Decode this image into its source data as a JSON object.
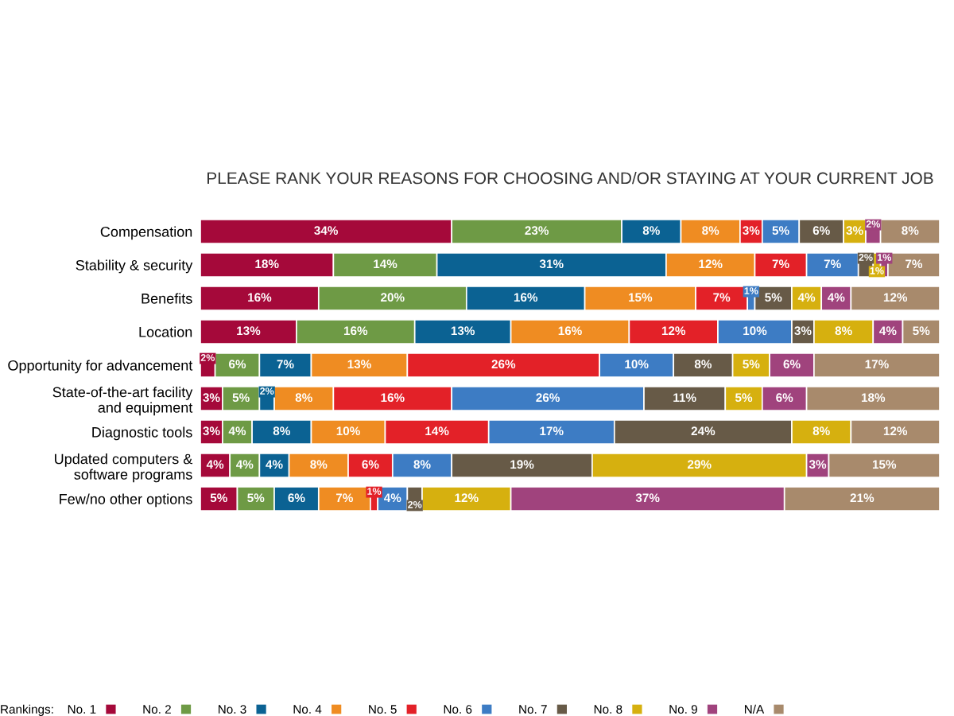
{
  "chart_data": {
    "type": "bar",
    "orientation": "horizontal",
    "stacked": true,
    "title": "PLEASE RANK YOUR REASONS FOR CHOOSING AND/OR STAYING AT YOUR CURRENT JOB",
    "categories": [
      "Compensation",
      "Stability & security",
      "Benefits",
      "Location",
      "Opportunity for advancement",
      "State-of-the-art facility\nand equipment",
      "Diagnostic tools",
      "Updated computers &\nsoftware programs",
      "Few/no other options"
    ],
    "legend_title": "Rankings:",
    "legend": "bottom",
    "tick_labels": "y",
    "series": [
      {
        "name": "No. 1",
        "color": "#a5093a",
        "values": [
          34,
          18,
          16,
          13,
          2,
          3,
          3,
          4,
          5
        ],
        "value_labels": [
          "34%",
          "18%",
          "16%",
          "13%",
          "2%",
          "3%",
          "3%",
          "4%",
          "5%"
        ]
      },
      {
        "name": "No. 2",
        "color": "#6e9a45",
        "values": [
          23,
          14,
          20,
          16,
          6,
          5,
          4,
          4,
          5
        ],
        "value_labels": [
          "23%",
          "14%",
          "20%",
          "16%",
          "6%",
          "5%",
          "4%",
          "4%",
          "5%"
        ]
      },
      {
        "name": "No. 3",
        "color": "#0b6293",
        "values": [
          8,
          31,
          16,
          13,
          7,
          2,
          8,
          4,
          6
        ],
        "value_labels": [
          "8%",
          "31%",
          "16%",
          "13%",
          "7%",
          "2%",
          "8%",
          "4%",
          "6%"
        ]
      },
      {
        "name": "No. 4",
        "color": "#ef8c22",
        "values": [
          8,
          12,
          15,
          16,
          13,
          8,
          10,
          8,
          7
        ],
        "value_labels": [
          "8%",
          "12%",
          "15%",
          "16%",
          "13%",
          "8%",
          "10%",
          "8%",
          "7%"
        ]
      },
      {
        "name": "No. 5",
        "color": "#e32128",
        "values": [
          3,
          7,
          7,
          12,
          26,
          16,
          14,
          6,
          1
        ],
        "value_labels": [
          "3%",
          "7%",
          "7%",
          "12%",
          "26%",
          "16%",
          "14%",
          "6%",
          "1%"
        ]
      },
      {
        "name": "No. 6",
        "color": "#3d7cc4",
        "values": [
          5,
          7,
          1,
          10,
          10,
          26,
          17,
          8,
          4
        ],
        "value_labels": [
          "5%",
          "7%",
          "1%",
          "10%",
          "10%",
          "26%",
          "17%",
          "8%",
          "4%"
        ]
      },
      {
        "name": "No. 7",
        "color": "#675a47",
        "values": [
          6,
          2,
          5,
          3,
          8,
          11,
          24,
          19,
          2
        ],
        "value_labels": [
          "6%",
          "2%",
          "5%",
          "3%",
          "8%",
          "11%",
          "24%",
          "19%",
          "2%"
        ]
      },
      {
        "name": "No. 8",
        "color": "#d6b00f",
        "values": [
          3,
          1,
          4,
          8,
          5,
          5,
          8,
          29,
          12
        ],
        "value_labels": [
          "3%",
          "1%",
          "4%",
          "8%",
          "5%",
          "5%",
          "8%",
          "29%",
          "12%"
        ]
      },
      {
        "name": "No. 9",
        "color": "#a0437d",
        "values": [
          2,
          1,
          4,
          4,
          6,
          6,
          0,
          3,
          37
        ],
        "value_labels": [
          "2%",
          "1%",
          "4%",
          "4%",
          "6%",
          "6%",
          null,
          "3%",
          "37%"
        ]
      },
      {
        "name": "N/A",
        "color": "#a88a6c",
        "values": [
          8,
          7,
          12,
          5,
          17,
          18,
          12,
          15,
          21
        ],
        "value_labels": [
          "8%",
          "7%",
          "12%",
          "5%",
          "17%",
          "18%",
          "12%",
          "15%",
          "21%"
        ]
      }
    ]
  }
}
